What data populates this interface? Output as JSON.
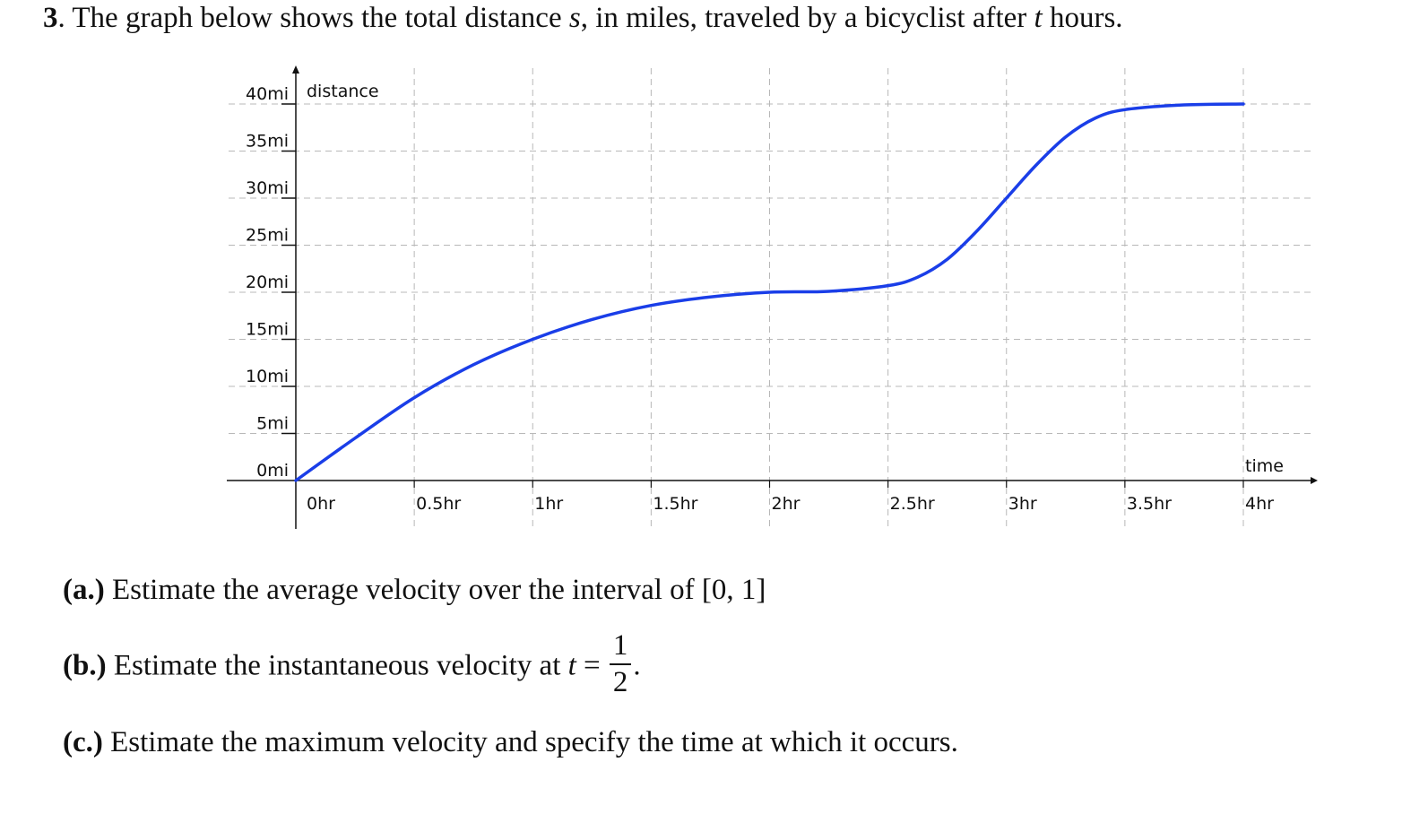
{
  "problem": {
    "number": "3",
    "text_before_s": ". The graph below shows the total distance ",
    "var_s": "s",
    "text_middle": ", in miles, traveled by a bicyclist after ",
    "var_t": "t",
    "text_end": " hours."
  },
  "chart_data": {
    "type": "line",
    "title": "",
    "xlabel": "time",
    "ylabel": "distance",
    "xlim": [
      0,
      4
    ],
    "ylim": [
      0,
      40
    ],
    "x_ticks": [
      0,
      0.5,
      1,
      1.5,
      2,
      2.5,
      3,
      3.5,
      4
    ],
    "x_tick_labels": [
      "0hr",
      "0.5hr",
      "1hr",
      "1.5hr",
      "2hr",
      "2.5hr",
      "3hr",
      "3.5hr",
      "4hr"
    ],
    "y_ticks": [
      0,
      5,
      10,
      15,
      20,
      25,
      30,
      35,
      40
    ],
    "y_tick_labels": [
      "0mi",
      "5mi",
      "10mi",
      "15mi",
      "20mi",
      "25mi",
      "30mi",
      "35mi",
      "40mi"
    ],
    "grid": true,
    "series": [
      {
        "color": "#1a3ee8",
        "x": [
          0,
          0.25,
          0.5,
          0.75,
          1,
          1.25,
          1.5,
          1.75,
          2,
          2.25,
          2.5,
          2.625,
          2.75,
          2.875,
          3,
          3.125,
          3.25,
          3.375,
          3.5,
          3.75,
          4
        ],
        "y": [
          0,
          4.5,
          8.8,
          12.3,
          15,
          17.1,
          18.6,
          19.5,
          20,
          20.1,
          20.7,
          21.6,
          23.5,
          26.5,
          30,
          33.5,
          36.5,
          38.5,
          39.4,
          39.9,
          40
        ]
      }
    ]
  },
  "questions": {
    "a": {
      "label": "(a.)",
      "text": " Estimate the average velocity over the interval of [0, 1]"
    },
    "b": {
      "label": "(b.)",
      "text": " Estimate the instantaneous velocity at ",
      "var": "t",
      "equals": " = ",
      "numerator": "1",
      "denominator": "2",
      "end": "."
    },
    "c": {
      "label": "(c.)",
      "text": " Estimate the maximum velocity and specify the time at which it occurs."
    }
  }
}
